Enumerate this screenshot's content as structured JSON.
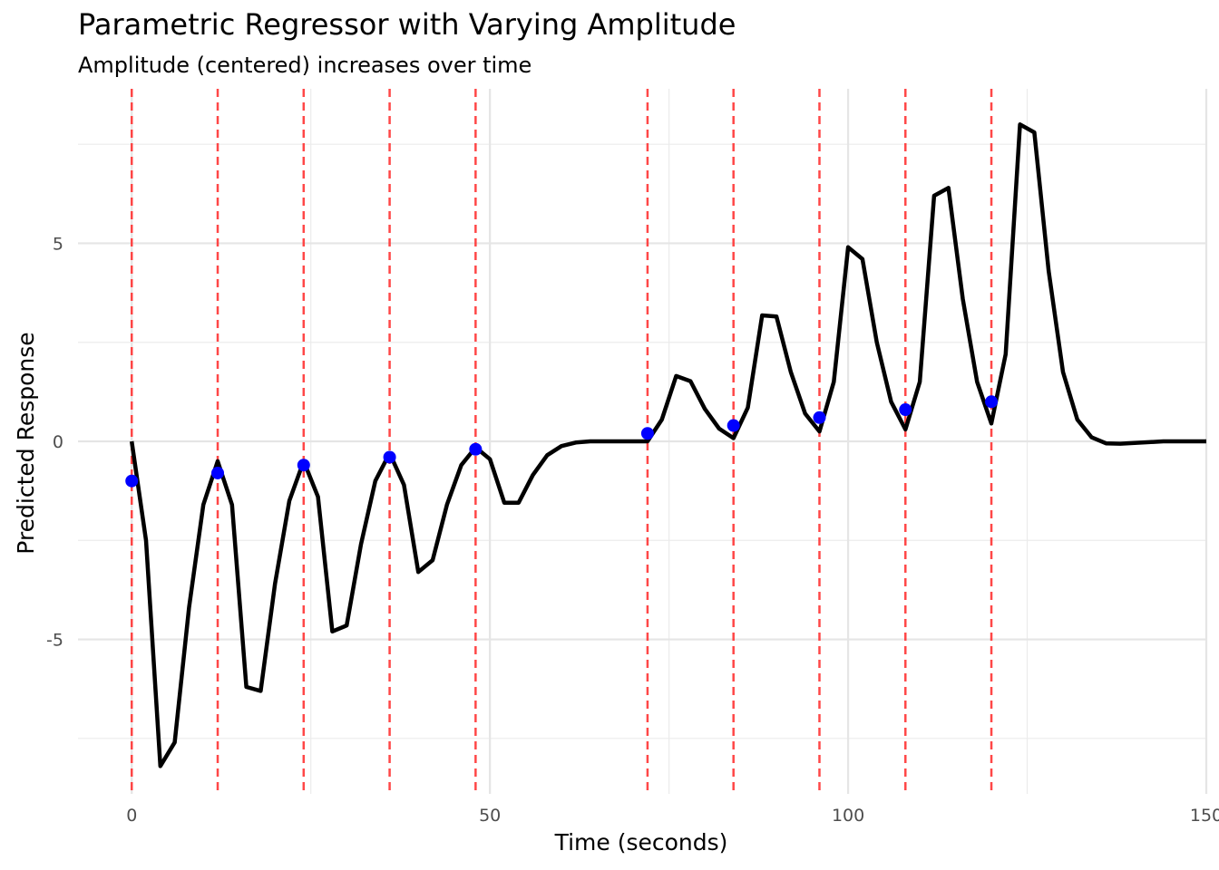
{
  "chart_data": {
    "type": "line",
    "title": "Parametric Regressor with Varying Amplitude",
    "subtitle": "Amplitude (centered) increases over time",
    "xlabel": "Time (seconds)",
    "ylabel": "Predicted Response",
    "xlim": [
      -7.5,
      150
    ],
    "ylim": [
      -8.9,
      8.9
    ],
    "x_ticks": [
      0,
      50,
      100,
      150
    ],
    "y_ticks": [
      -5,
      0,
      5
    ],
    "grid": true,
    "legend": "none",
    "colors": {
      "line": "#000000",
      "points": "#0000ff",
      "onsets": "#ff3333"
    },
    "series": [
      {
        "type": "line",
        "x": [
          0,
          2,
          4,
          6,
          8,
          10,
          12,
          14,
          16,
          18,
          20,
          22,
          24,
          26,
          28,
          30,
          32,
          34,
          36,
          38,
          40,
          42,
          44,
          46,
          48,
          50,
          52,
          54,
          56,
          58,
          60,
          62,
          64,
          66,
          68,
          70,
          72,
          74,
          76,
          78,
          80,
          82,
          84,
          86,
          88,
          90,
          92,
          94,
          96,
          98,
          100,
          102,
          104,
          106,
          108,
          110,
          112,
          114,
          116,
          118,
          120,
          122,
          124,
          126,
          128,
          130,
          132,
          134,
          136,
          138,
          140,
          142,
          144,
          146,
          148,
          150
        ],
        "y": [
          0,
          -2.5,
          -8.2,
          -7.6,
          -4.2,
          -1.6,
          -0.5,
          -1.6,
          -6.2,
          -6.3,
          -3.6,
          -1.5,
          -0.5,
          -1.4,
          -4.8,
          -4.65,
          -2.6,
          -1.0,
          -0.3,
          -1.1,
          -3.3,
          -3.0,
          -1.6,
          -0.6,
          -0.15,
          -0.45,
          -1.55,
          -1.55,
          -0.85,
          -0.35,
          -0.12,
          -0.03,
          0,
          0,
          0,
          0,
          0,
          0.55,
          1.65,
          1.52,
          0.82,
          0.32,
          0.08,
          0.85,
          3.18,
          3.15,
          1.75,
          0.7,
          0.25,
          1.5,
          4.9,
          4.6,
          2.5,
          1.0,
          0.3,
          1.5,
          6.2,
          6.4,
          3.6,
          1.5,
          0.45,
          2.2,
          8.0,
          7.8,
          4.3,
          1.75,
          0.55,
          0.1,
          -0.05,
          -0.06,
          -0.04,
          -0.02,
          0,
          0,
          0,
          0
        ]
      },
      {
        "type": "scatter",
        "x": [
          0,
          12,
          24,
          36,
          48,
          72,
          84,
          96,
          108,
          120
        ],
        "y": [
          -1.0,
          -0.8,
          -0.6,
          -0.4,
          -0.2,
          0.2,
          0.4,
          0.6,
          0.8,
          1.0
        ]
      }
    ],
    "onsets": [
      0,
      12,
      24,
      36,
      48,
      72,
      84,
      96,
      108,
      120
    ]
  }
}
